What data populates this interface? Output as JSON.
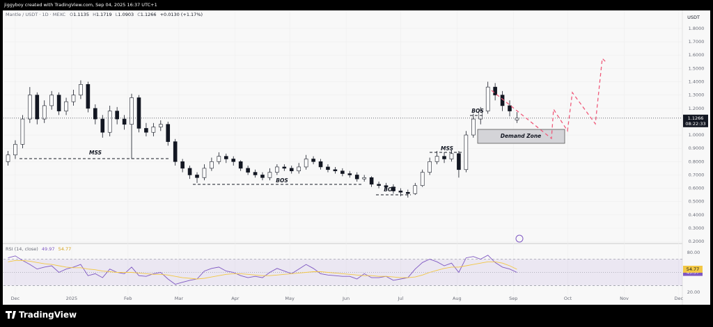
{
  "header": {
    "credit": "jiggyboy created with TradingView.com, Sep 04, 2025 16:37 UTC+1",
    "brand": "TradingView"
  },
  "chart_data": [
    {
      "type": "candlestick",
      "symbol": "Mantle / USDT · 1D · MEXC",
      "ohlc_letters": [
        "O",
        "H",
        "L",
        "C"
      ],
      "change": "+0.0130 (+1.17%)",
      "currency": "USDT",
      "countdown": "08:22:33",
      "annotations": [
        "MSS",
        "BOS",
        "BOS",
        "MSS",
        "BOS",
        "Demand Zone"
      ],
      "colors": {
        "up": "#ffffff",
        "down": "#131722",
        "wick": "#131722"
      },
      "x": [
        -4,
        0,
        4,
        8,
        12,
        16,
        20,
        24,
        28,
        32,
        36,
        40,
        44,
        48,
        52,
        56,
        60,
        64,
        68,
        72,
        76,
        80,
        84,
        88,
        92,
        96,
        100,
        104,
        108,
        112,
        116,
        120,
        124,
        128,
        132,
        136,
        140,
        144,
        148,
        152,
        156,
        160,
        164,
        168,
        172,
        176,
        180,
        184,
        188,
        192,
        196,
        200,
        204,
        208,
        212,
        216,
        220,
        224,
        228,
        232,
        236,
        240,
        244,
        248,
        252,
        256,
        260,
        264,
        268,
        272,
        276
      ],
      "open": [
        0.8,
        0.85,
        0.93,
        1.12,
        1.3,
        1.12,
        1.22,
        1.3,
        1.18,
        1.25,
        1.3,
        1.38,
        1.2,
        1.12,
        1.02,
        1.18,
        1.12,
        1.08,
        1.28,
        1.05,
        1.02,
        1.06,
        1.08,
        0.95,
        0.8,
        0.75,
        0.7,
        0.68,
        0.75,
        0.8,
        0.84,
        0.82,
        0.8,
        0.75,
        0.72,
        0.7,
        0.68,
        0.72,
        0.76,
        0.75,
        0.73,
        0.76,
        0.82,
        0.8,
        0.76,
        0.74,
        0.73,
        0.71,
        0.7,
        0.67,
        0.68,
        0.63,
        0.62,
        0.61,
        0.58,
        0.57,
        0.56,
        0.62,
        0.72,
        0.8,
        0.84,
        0.82,
        0.86,
        0.74,
        1.0,
        1.12,
        1.18,
        1.36,
        1.3,
        1.22,
        1.1135
      ],
      "high": [
        0.88,
        0.96,
        1.15,
        1.36,
        1.32,
        1.26,
        1.33,
        1.32,
        1.28,
        1.34,
        1.41,
        1.4,
        1.23,
        1.15,
        1.22,
        1.21,
        1.15,
        1.31,
        1.3,
        1.09,
        1.09,
        1.11,
        1.1,
        0.97,
        0.82,
        0.77,
        0.72,
        0.78,
        0.83,
        0.87,
        0.86,
        0.84,
        0.81,
        0.77,
        0.74,
        0.72,
        0.75,
        0.78,
        0.78,
        0.77,
        0.79,
        0.85,
        0.84,
        0.82,
        0.78,
        0.76,
        0.75,
        0.73,
        0.72,
        0.7,
        0.69,
        0.65,
        0.64,
        0.63,
        0.6,
        0.59,
        0.64,
        0.74,
        0.83,
        0.88,
        0.87,
        0.89,
        0.88,
        1.03,
        1.16,
        1.21,
        1.4,
        1.39,
        1.33,
        1.26,
        1.1719
      ],
      "low": [
        0.77,
        0.82,
        0.9,
        1.09,
        1.08,
        1.09,
        1.19,
        1.15,
        1.15,
        1.22,
        1.27,
        1.17,
        1.08,
        0.98,
        0.99,
        1.08,
        1.04,
        0.82,
        1.02,
        0.99,
        0.99,
        1.03,
        0.92,
        0.77,
        0.72,
        0.67,
        0.64,
        0.66,
        0.73,
        0.78,
        0.79,
        0.77,
        0.73,
        0.7,
        0.68,
        0.66,
        0.66,
        0.7,
        0.73,
        0.71,
        0.71,
        0.74,
        0.78,
        0.74,
        0.72,
        0.71,
        0.69,
        0.68,
        0.65,
        0.65,
        0.61,
        0.6,
        0.59,
        0.56,
        0.54,
        0.53,
        0.55,
        0.61,
        0.7,
        0.78,
        0.79,
        0.8,
        0.68,
        0.72,
        0.98,
        1.08,
        1.16,
        1.26,
        1.18,
        1.14,
        1.0903
      ],
      "close": [
        0.85,
        0.93,
        1.12,
        1.3,
        1.12,
        1.22,
        1.3,
        1.18,
        1.25,
        1.3,
        1.38,
        1.2,
        1.12,
        1.02,
        1.18,
        1.12,
        1.08,
        1.28,
        1.05,
        1.02,
        1.06,
        1.08,
        0.95,
        0.8,
        0.75,
        0.7,
        0.68,
        0.75,
        0.8,
        0.84,
        0.82,
        0.8,
        0.75,
        0.72,
        0.7,
        0.68,
        0.72,
        0.76,
        0.75,
        0.73,
        0.76,
        0.82,
        0.8,
        0.76,
        0.74,
        0.73,
        0.71,
        0.7,
        0.67,
        0.68,
        0.63,
        0.62,
        0.61,
        0.58,
        0.57,
        0.56,
        0.62,
        0.72,
        0.8,
        0.84,
        0.82,
        0.86,
        0.74,
        1.0,
        1.12,
        1.18,
        1.36,
        1.3,
        1.22,
        1.18,
        1.1266
      ],
      "xlim": [
        -6.5,
        367
      ],
      "xticks": [
        {
          "value": 0,
          "label": "Dec"
        },
        {
          "value": 31,
          "label": "2025"
        },
        {
          "value": 62,
          "label": "Feb"
        },
        {
          "value": 90,
          "label": "Mar"
        },
        {
          "value": 121,
          "label": "Apr"
        },
        {
          "value": 151,
          "label": "May"
        },
        {
          "value": 182,
          "label": "Jun"
        },
        {
          "value": 212,
          "label": "Jul"
        },
        {
          "value": 243,
          "label": "Aug"
        },
        {
          "value": 274,
          "label": "Sep"
        },
        {
          "value": 304,
          "label": "Oct"
        },
        {
          "value": 335,
          "label": "Nov"
        },
        {
          "value": 365,
          "label": "Dec"
        }
      ],
      "ylim": [
        0.185,
        1.925
      ],
      "yticks": [
        {
          "value": 0.2,
          "label": "0.2000"
        },
        {
          "value": 0.3,
          "label": "0.3000"
        },
        {
          "value": 0.4,
          "label": "0.4000"
        },
        {
          "value": 0.5,
          "label": "0.5000"
        },
        {
          "value": 0.6,
          "label": "0.6000"
        },
        {
          "value": 0.7,
          "label": "0.7000"
        },
        {
          "value": 0.8,
          "label": "0.8000"
        },
        {
          "value": 0.9,
          "label": "0.9000"
        },
        {
          "value": 1.0,
          "label": "1.0000"
        },
        {
          "value": 1.2,
          "label": "1.2000"
        },
        {
          "value": 1.3,
          "label": "1.3000"
        },
        {
          "value": 1.4,
          "label": "1.4000"
        },
        {
          "value": 1.5,
          "label": "1.5000"
        },
        {
          "value": 1.6,
          "label": "1.6000"
        },
        {
          "value": 1.7,
          "label": "1.7000"
        },
        {
          "value": 1.8,
          "label": "1.8000"
        }
      ]
    },
    {
      "type": "line",
      "title": "RSI (14, close)",
      "band": [
        30,
        70
      ],
      "middle": 50,
      "band_color": "#7e57c2",
      "series": [
        {
          "color": "#7e57c2",
          "values": [
            72,
            75,
            68,
            62,
            55,
            58,
            60,
            50,
            55,
            58,
            62,
            45,
            48,
            42,
            55,
            50,
            48,
            58,
            45,
            44,
            48,
            50,
            40,
            32,
            35,
            38,
            40,
            52,
            56,
            58,
            52,
            50,
            45,
            42,
            44,
            42,
            50,
            56,
            52,
            48,
            55,
            62,
            56,
            48,
            46,
            45,
            44,
            44,
            40,
            48,
            42,
            42,
            44,
            38,
            40,
            42,
            55,
            65,
            70,
            66,
            60,
            64,
            50,
            72,
            74,
            70,
            76,
            65,
            58,
            55,
            49.97
          ]
        },
        {
          "color": "#f2c744",
          "values": [
            66,
            68,
            68,
            67,
            65,
            63,
            62,
            60,
            58,
            57,
            57,
            55,
            54,
            52,
            51,
            50,
            50,
            50,
            49,
            48,
            47,
            47,
            46,
            44,
            42,
            41,
            40,
            41,
            43,
            45,
            47,
            48,
            48,
            47,
            46,
            45,
            45,
            46,
            47,
            48,
            49,
            50,
            51,
            51,
            50,
            49,
            48,
            47,
            46,
            45,
            45,
            44,
            44,
            43,
            42,
            42,
            43,
            46,
            50,
            53,
            56,
            58,
            58,
            60,
            62,
            64,
            66,
            66,
            64,
            60,
            54.77
          ]
        }
      ],
      "ylim": [
        14.7,
        91.6
      ],
      "yticks": [
        {
          "value": 80,
          "label": "80.00"
        },
        {
          "value": 20,
          "label": "20.00"
        }
      ]
    }
  ]
}
